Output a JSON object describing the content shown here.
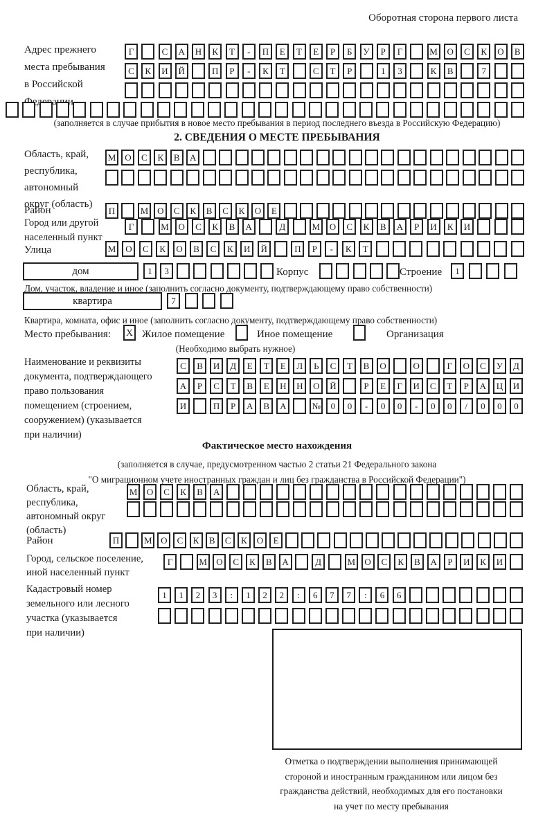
{
  "header": {
    "note": "Оборотная сторона первого листа"
  },
  "prev_address": {
    "label_lines": [
      "Адрес прежнего",
      "места пребывания",
      "в Российской",
      "Федерации"
    ],
    "rows": [
      "Г САНКТ-ПЕТЕРБУРГ МОСКОВ",
      "СКИЙ ПР-КТ СТР 13 КВ 7",
      "",
      ""
    ],
    "caption": "(заполняется в случае прибытия в новое место пребывания в период последнего въезда в Российскую Федерацию)"
  },
  "section2": {
    "title": "2. СВЕДЕНИЯ О МЕСТЕ ПРЕБЫВАНИЯ",
    "oblast": {
      "label_lines": [
        "Область, край,",
        "республика,",
        "автономный",
        "округ (область)"
      ],
      "row1": "МОСКВА",
      "row2": ""
    },
    "raion": {
      "label": "Район",
      "row": "П МОСКВСКОЕ"
    },
    "gorod": {
      "label_lines": [
        "Город или другой",
        "населенный пункт"
      ],
      "row": "Г МОСКВА Д МОСКВАРИКИ"
    },
    "ulitsa": {
      "label": "Улица",
      "row": "МОСКОВСКИЙ ПР-КТ"
    },
    "dom": {
      "box_label": "дом",
      "cells": "13",
      "korpus_label": "Корпус",
      "korpus_cells": "",
      "stroenie_label": "Строение",
      "stroenie_cells": "1"
    },
    "dom_caption": "Дом, участок, владение и иное (заполнить согласно документу, подтверждающему право собственности)",
    "kvartira": {
      "box_label": "квартира",
      "cells": "7"
    },
    "kvartira_caption": "Квартира, комната, офис и иное (заполнить согласно документу, подтверждающему право собственности)",
    "mesto": {
      "label": "Место пребывания:",
      "options": [
        {
          "label": "Жилое помещение",
          "checked": "X"
        },
        {
          "label": "Иное помещение",
          "checked": ""
        },
        {
          "label": "Организация",
          "checked": ""
        }
      ],
      "hint": "(Необходимо выбрать нужное)"
    },
    "doc": {
      "label_lines": [
        "Наименование и реквизиты",
        "документа, подтверждающего",
        "право пользования",
        "помещением (строением,",
        "сооружением) (указывается",
        "при наличии)"
      ],
      "rows": [
        "СВИДЕТЕЛЬСТВО О ГОСУД",
        "АРСТВЕННОЙ РЕГИСТРАЦИ",
        "И ПРАВА №00-00-00/000"
      ]
    }
  },
  "fact": {
    "title": "Фактическое место нахождения",
    "subtitle_lines": [
      "(заполняется в случае, предусмотренном частью 2 статьи 21 Федерального закона",
      "\"О миграционном учете иностранных граждан и лиц без гражданства в Российской Федерации\")"
    ],
    "oblast": {
      "label_lines": [
        "Область, край,",
        "республика,",
        "автономный округ",
        "(область)"
      ],
      "row1": "МОСКВА",
      "row2": ""
    },
    "raion": {
      "label": "Район",
      "row": "П МОСКВСКОЕ"
    },
    "gorod": {
      "label_lines": [
        "Город, сельское поселение,",
        "иной населенный пункт"
      ],
      "row": "Г МОСКВА Д МОСКВАРИКИ"
    },
    "kadastr": {
      "label_lines": [
        "Кадастровый номер",
        "земельного или лесного",
        "участка (указывается",
        "при наличии)"
      ],
      "row1": "1123:122:677:66",
      "row2": ""
    },
    "stamp_caption_lines": [
      "Отметка о подтверждении выполнения принимающей",
      "стороной и иностранным гражданином или лицом без",
      "гражданства действий, необходимых для его постановки",
      "на учет по месту пребывания"
    ]
  }
}
